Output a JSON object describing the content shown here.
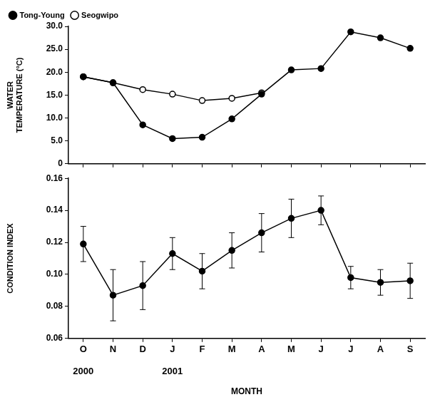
{
  "chart_data": [
    {
      "type": "line",
      "y_label": "WATER TEMPERATURE (°C)",
      "categories": [
        "O",
        "N",
        "D",
        "J",
        "F",
        "M",
        "A",
        "M",
        "J",
        "J",
        "A",
        "S"
      ],
      "series": [
        {
          "name": "Tong-Young",
          "color": "#000000",
          "marker": "circle",
          "line_style": "solid",
          "values": [
            19.0,
            17.7,
            8.5,
            5.5,
            5.8,
            9.8,
            15.2,
            20.5,
            20.8,
            28.8,
            27.5,
            25.2
          ]
        },
        {
          "name": "Seogwipo",
          "color": "#000000",
          "marker": "open_circle",
          "line_style": "solid",
          "values": [
            19.0,
            17.7,
            16.2,
            15.2,
            13.8,
            14.3,
            15.5,
            null,
            null,
            null,
            null,
            null
          ]
        }
      ],
      "ylim": [
        0,
        30
      ],
      "yticks": [
        0,
        {
          "value": 5,
          "label": "5.0"
        },
        {
          "value": 10,
          "label": "10.0"
        },
        {
          "value": 15,
          "label": "15.0"
        },
        {
          "value": 20,
          "label": "20.0"
        },
        {
          "value": 25,
          "label": "25.0"
        },
        {
          "value": 30,
          "label": "30.0"
        }
      ],
      "grid": false,
      "legend": "top",
      "tick_labels": "y"
    },
    {
      "type": "line",
      "y_label": "CONDITION INDEX",
      "x_label": "MONTH",
      "categories": [
        "O",
        "N",
        "D",
        "J",
        "F",
        "M",
        "A",
        "M",
        "J",
        "J",
        "A",
        "S"
      ],
      "years": [
        "2000",
        null,
        null,
        "2001",
        null,
        null,
        null,
        null,
        null,
        null,
        null,
        null
      ],
      "series": [
        {
          "color": "#000000",
          "marker": "circle",
          "line_style": "solid",
          "values": [
            0.119,
            0.087,
            0.093,
            0.113,
            0.102,
            0.115,
            0.126,
            0.135,
            0.14,
            0.098,
            0.095,
            0.096
          ],
          "errors": [
            0.011,
            0.016,
            0.015,
            0.01,
            0.011,
            0.011,
            0.012,
            0.012,
            0.009,
            0.007,
            0.008,
            0.011
          ]
        }
      ],
      "ylim": [
        0.06,
        0.16
      ],
      "yticks": [
        0.06,
        0.08,
        {
          "value": 0.1,
          "label": "0.10"
        },
        0.12,
        0.14,
        0.16
      ],
      "grid": false
    }
  ]
}
